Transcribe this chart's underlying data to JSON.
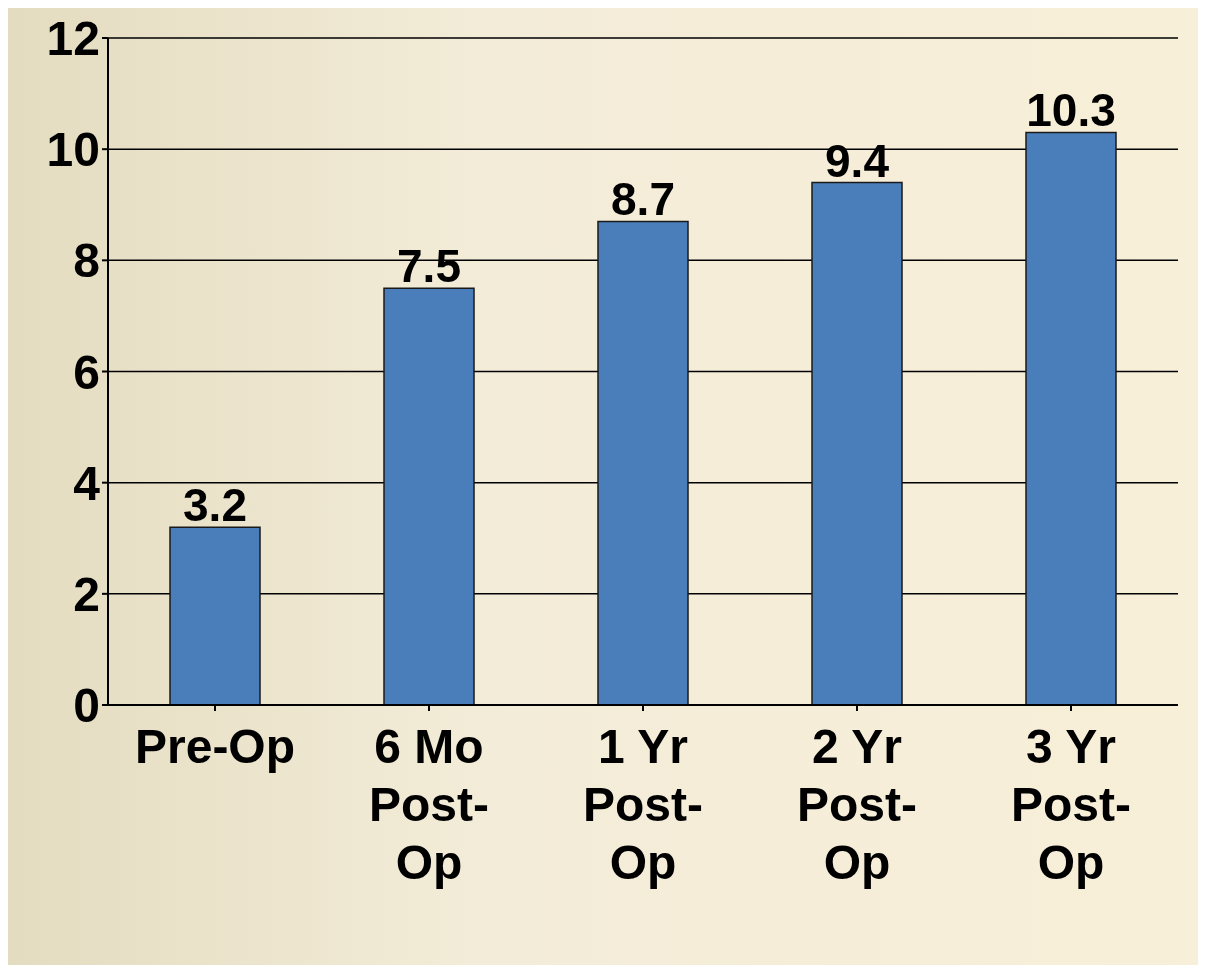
{
  "chart_data": {
    "type": "bar",
    "categories": [
      "Pre-Op",
      "6 Mo Post-Op",
      "1 Yr Post-Op",
      "2 Yr Post-Op",
      "3 Yr Post-Op"
    ],
    "values": [
      3.2,
      7.5,
      8.7,
      9.4,
      10.3
    ],
    "color": "#4a7ebb",
    "data_labels": true,
    "ylim": [
      0,
      12
    ],
    "yticks": [
      0,
      2,
      4,
      6,
      8,
      10,
      12
    ],
    "grid": "y"
  }
}
